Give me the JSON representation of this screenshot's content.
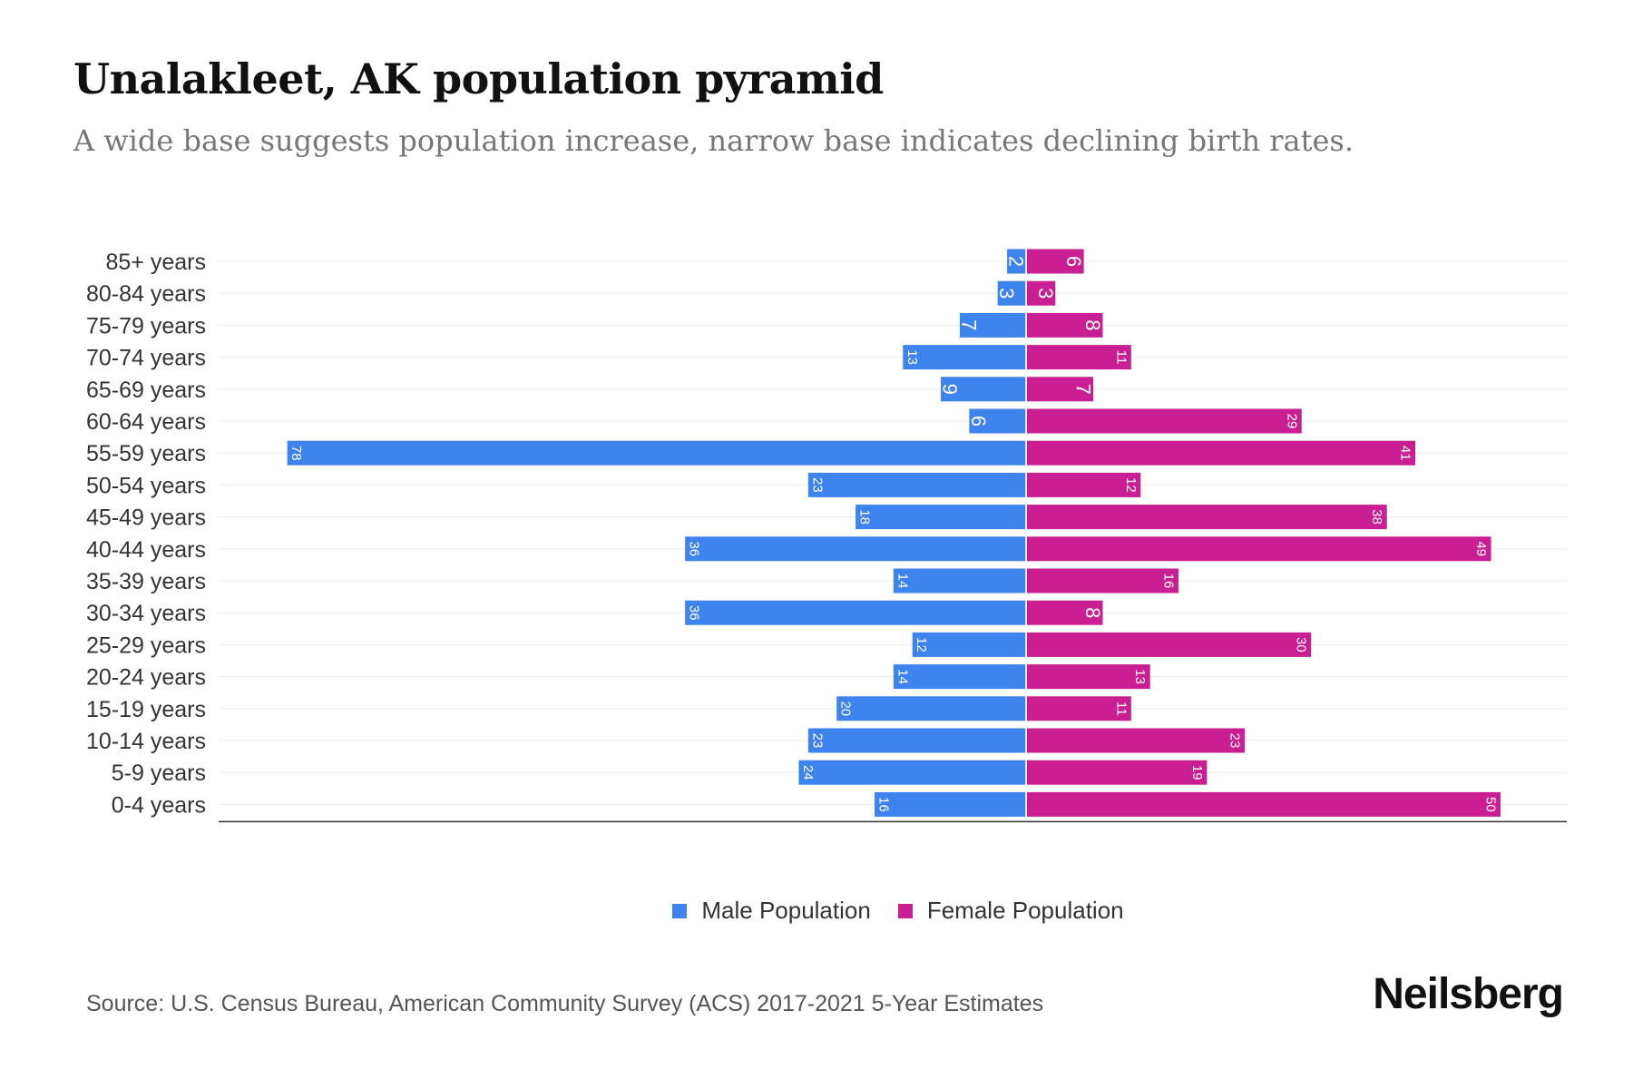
{
  "title": "Unalakleet, AK population pyramid",
  "subtitle": "A wide base suggests population increase, narrow base indicates declining birth rates.",
  "source": "Source: U.S. Census Bureau, American Community Survey (ACS) 2017-2021 5-Year Estimates",
  "logo": "Neilsberg",
  "colors": {
    "male": "#3f84ee",
    "female": "#c91f93"
  },
  "chart_data": {
    "type": "bar",
    "orientation": "horizontal-pyramid",
    "categories": [
      "85+ years",
      "80-84 years",
      "75-79 years",
      "70-74 years",
      "65-69 years",
      "60-64 years",
      "55-59 years",
      "50-54 years",
      "45-49 years",
      "40-44 years",
      "35-39 years",
      "30-34 years",
      "25-29 years",
      "20-24 years",
      "15-19 years",
      "10-14 years",
      "5-9 years",
      "0-4 years"
    ],
    "series": [
      {
        "name": "Male Population",
        "values": [
          2,
          3,
          7,
          13,
          9,
          6,
          78,
          23,
          18,
          36,
          14,
          36,
          12,
          14,
          20,
          23,
          24,
          16
        ]
      },
      {
        "name": "Female Population",
        "values": [
          6,
          3,
          8,
          11,
          7,
          29,
          41,
          12,
          38,
          49,
          16,
          8,
          30,
          13,
          11,
          23,
          19,
          50
        ]
      }
    ],
    "grid": true,
    "legend": "bottom"
  }
}
